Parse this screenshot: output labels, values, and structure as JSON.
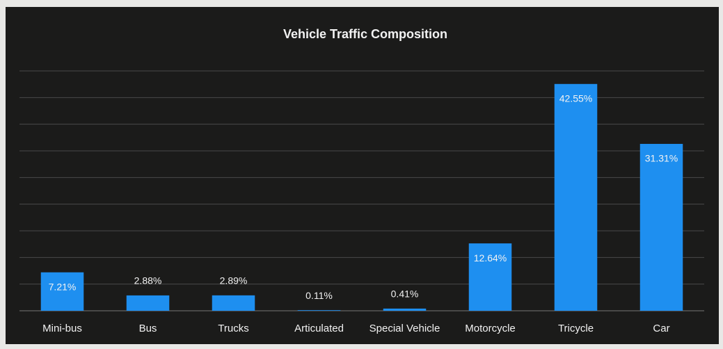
{
  "chart_data": {
    "type": "bar",
    "title": "Vehicle Traffic Composition",
    "categories": [
      "Mini-bus",
      "Bus",
      "Trucks",
      "Articulated",
      "Special Vehicle",
      "Motorcycle",
      "Tricycle",
      "Car"
    ],
    "values": [
      7.21,
      2.88,
      2.89,
      0.11,
      0.41,
      12.64,
      42.55,
      31.31
    ],
    "value_labels": [
      "7.21%",
      "2.88%",
      "2.89%",
      "0.11%",
      "0.41%",
      "12.64%",
      "42.55%",
      "31.31%"
    ],
    "color": "#1e8ff0",
    "ylim": [
      0,
      45
    ],
    "yticks": [
      0,
      5,
      10,
      15,
      20,
      25,
      30,
      35,
      40,
      45
    ],
    "grid": true
  }
}
